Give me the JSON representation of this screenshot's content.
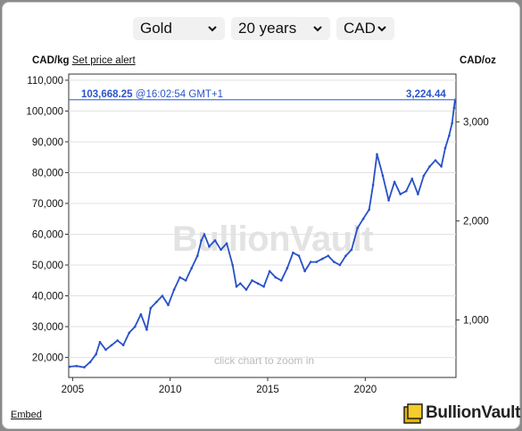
{
  "controls": {
    "metal": "Gold",
    "period": "20 years",
    "currency": "CAD"
  },
  "header": {
    "left_unit": "CAD/kg",
    "alert_link": "Set price alert",
    "right_unit": "CAD/oz"
  },
  "overlay": {
    "price_kg": "103,668.25",
    "timestamp": "@16:02:54 GMT+1",
    "price_oz": "3,224.44",
    "watermark": "BullionVault",
    "zoom_hint": "click chart to zoom in"
  },
  "footer": {
    "embed": "Embed",
    "logo_text": "BullionVault"
  },
  "colors": {
    "series": "#2750c8",
    "current_line": "#4a78e6",
    "value_text": "#2a55c8"
  },
  "chart_data": {
    "type": "line",
    "title": "",
    "xlabel": "",
    "ylabel_left": "CAD/kg",
    "ylabel_right": "CAD/oz",
    "xlim": [
      2004.8,
      2024.65
    ],
    "ylim_left": [
      13500,
      112000
    ],
    "yticks_left": [
      20000,
      30000,
      40000,
      50000,
      60000,
      70000,
      80000,
      90000,
      100000,
      110000
    ],
    "yticks_left_labels": [
      "20,000",
      "30,000",
      "40,000",
      "50,000",
      "60,000",
      "70,000",
      "80,000",
      "90,000",
      "100,000",
      "110,000"
    ],
    "yticks_right": [
      1000,
      2000,
      3000
    ],
    "yticks_right_labels": [
      "1,000",
      "2,000",
      "3,000"
    ],
    "xticks": [
      2005,
      2010,
      2015,
      2020
    ],
    "xticks_labels": [
      "2005",
      "2010",
      "2015",
      "2020"
    ],
    "current_value_kg": 103668.25,
    "series": [
      {
        "x": [
          2004.85,
          2005.2,
          2005.6,
          2005.9,
          2006.2,
          2006.4,
          2006.7,
          2007.0,
          2007.3,
          2007.6,
          2007.9,
          2008.2,
          2008.5,
          2008.8,
          2009.0,
          2009.3,
          2009.6,
          2009.9,
          2010.2,
          2010.5,
          2010.8,
          2011.1,
          2011.4,
          2011.6,
          2011.75,
          2012.0,
          2012.3,
          2012.6,
          2012.9,
          2013.2,
          2013.4,
          2013.6,
          2013.9,
          2014.2,
          2014.5,
          2014.8,
          2015.1,
          2015.4,
          2015.7,
          2016.0,
          2016.3,
          2016.6,
          2016.9,
          2017.2,
          2017.5,
          2017.8,
          2018.1,
          2018.4,
          2018.7,
          2019.0,
          2019.3,
          2019.6,
          2019.9,
          2020.2,
          2020.4,
          2020.6,
          2020.9,
          2021.2,
          2021.5,
          2021.8,
          2022.1,
          2022.4,
          2022.7,
          2023.0,
          2023.3,
          2023.6,
          2023.9,
          2024.1,
          2024.3,
          2024.45,
          2024.55,
          2024.6
        ],
        "y": [
          17000,
          17200,
          16800,
          18500,
          21000,
          25000,
          22500,
          24000,
          25500,
          24000,
          28000,
          30000,
          34000,
          29000,
          36000,
          38000,
          40000,
          37000,
          42000,
          46000,
          45000,
          49000,
          53000,
          58000,
          60000,
          56000,
          58000,
          55000,
          57000,
          50000,
          43000,
          44000,
          42000,
          45000,
          44000,
          43000,
          48000,
          46000,
          45000,
          49000,
          54000,
          53000,
          48000,
          51000,
          51000,
          52000,
          53000,
          51000,
          50000,
          53000,
          55000,
          62000,
          65000,
          68000,
          76000,
          86000,
          79000,
          71000,
          77000,
          73000,
          74000,
          78000,
          73000,
          79000,
          82000,
          84000,
          82000,
          88000,
          92000,
          96000,
          101000,
          103668
        ]
      }
    ]
  }
}
